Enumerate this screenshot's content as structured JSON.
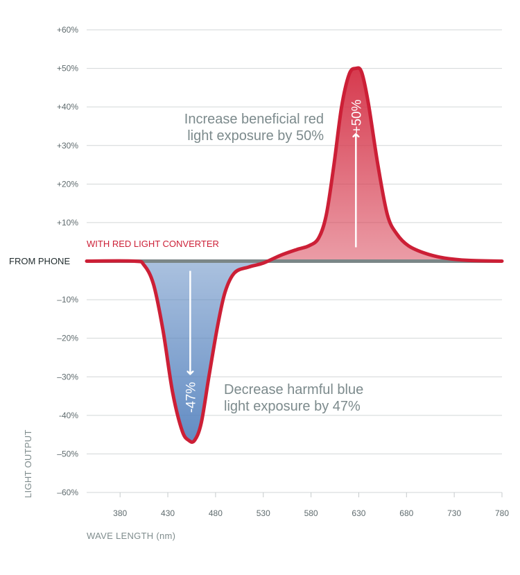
{
  "chart_data": {
    "type": "line",
    "title": "",
    "xlabel": "WAVE LENGTH (nm)",
    "ylabel": "LIGHT OUTPUT",
    "xlim": [
      345,
      780
    ],
    "ylim": [
      -60,
      60
    ],
    "x_ticks": [
      "380",
      "430",
      "480",
      "530",
      "580",
      "630",
      "680",
      "730",
      "780"
    ],
    "y_ticks": [
      "+60%",
      "+50%",
      "+40%",
      "+30%",
      "+20%",
      "+10%",
      "",
      "–10%",
      "–20%",
      "–30%",
      "-40%",
      "–50%",
      "–60%"
    ],
    "series": [
      {
        "name": "FROM PHONE",
        "color": "#7b8687",
        "points": [
          [
            345,
            0
          ],
          [
            780,
            0
          ]
        ]
      },
      {
        "name": "WITH RED LIGHT CONVERTER",
        "color": "#cc1f36",
        "points": [
          [
            345,
            0
          ],
          [
            395,
            0
          ],
          [
            405,
            -1
          ],
          [
            415,
            -6
          ],
          [
            425,
            -18
          ],
          [
            435,
            -34
          ],
          [
            445,
            -44
          ],
          [
            452,
            -46.5
          ],
          [
            458,
            -46.5
          ],
          [
            465,
            -42
          ],
          [
            473,
            -30
          ],
          [
            482,
            -17
          ],
          [
            490,
            -8
          ],
          [
            500,
            -3
          ],
          [
            515,
            -1.5
          ],
          [
            530,
            -0.5
          ],
          [
            548,
            1.5
          ],
          [
            565,
            3
          ],
          [
            578,
            4
          ],
          [
            588,
            6
          ],
          [
            596,
            12
          ],
          [
            604,
            25
          ],
          [
            612,
            40
          ],
          [
            620,
            48.5
          ],
          [
            627,
            50
          ],
          [
            633,
            49
          ],
          [
            640,
            41
          ],
          [
            650,
            25
          ],
          [
            660,
            12
          ],
          [
            670,
            7
          ],
          [
            682,
            4
          ],
          [
            700,
            2
          ],
          [
            720,
            0.8
          ],
          [
            745,
            0.2
          ],
          [
            780,
            0
          ]
        ]
      }
    ],
    "annotations": {
      "red_line1": "Increase beneficial red",
      "red_line2": "light exposure by 50%",
      "red_pct": "+50%",
      "blue_line1": "Decrease harmful blue",
      "blue_line2": "light exposure by 47%",
      "blue_pct": "-47%"
    },
    "colors": {
      "red": "#cc1f36",
      "red_fill": "#d63a4e",
      "blue_fill": "#5a86c0",
      "baseline": "#7b8687",
      "annotation": "#7c8a8c"
    }
  }
}
